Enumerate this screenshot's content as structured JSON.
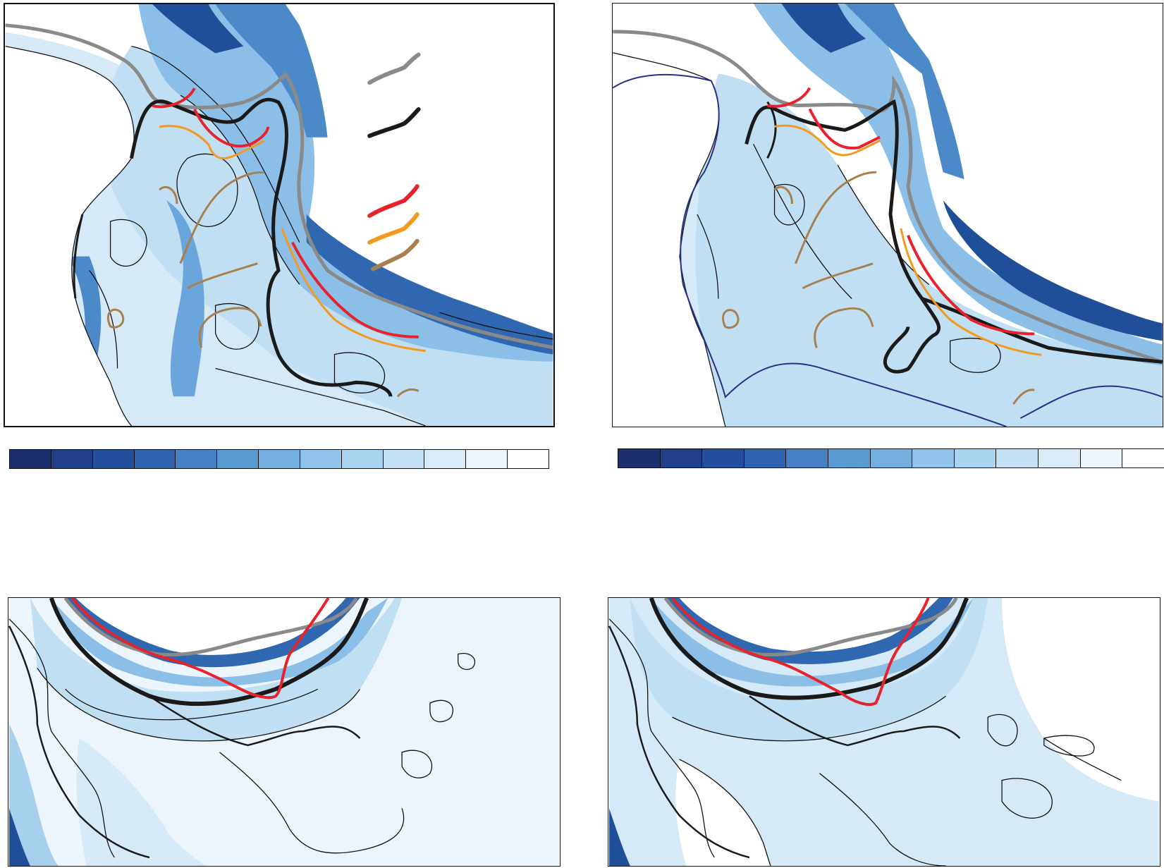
{
  "palette": {
    "colorbar": [
      "#1b2f6e",
      "#203f8a",
      "#22509e",
      "#2e64b0",
      "#4580c4",
      "#5a9ad2",
      "#73afe0",
      "#8fc3ea",
      "#a9d3f0",
      "#c3e0f4",
      "#d9ebf7",
      "#ecf5fb",
      "#ffffff"
    ],
    "shelf_fill": [
      "#d6e9f6",
      "#c1dff3",
      "#a7d0ee",
      "#8bbfe8",
      "#6aa6db",
      "#4b89c9",
      "#2f68b1",
      "#1f4f98"
    ],
    "line_gray": "#8a8a8a",
    "line_black": "#1a1a1a",
    "line_red": "#e8222a",
    "line_orange": "#f39a1e",
    "line_brown": "#a8804f",
    "line_navy": "#24308a"
  },
  "legend": {
    "items": [
      {
        "id": "gray",
        "color": "#8a8a8a"
      },
      {
        "id": "black",
        "color": "#1a1a1a"
      },
      {
        "id": "red",
        "color": "#e8222a"
      },
      {
        "id": "orange",
        "color": "#f39a1e"
      },
      {
        "id": "brown",
        "color": "#a8804f"
      }
    ]
  },
  "panels": [
    {
      "id": "a",
      "icon": "ocean-contour-map-icon"
    },
    {
      "id": "b",
      "icon": "ocean-contour-map-icon"
    },
    {
      "id": "c",
      "icon": "ocean-contour-map-icon"
    },
    {
      "id": "d",
      "icon": "ocean-contour-map-icon"
    }
  ]
}
